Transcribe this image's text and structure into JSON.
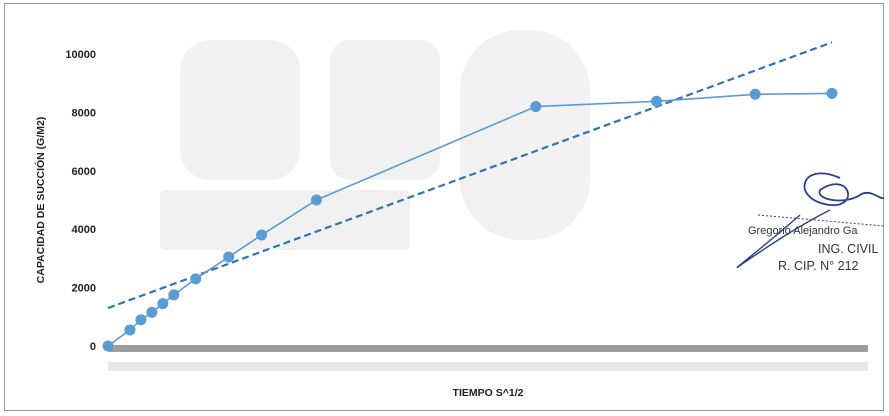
{
  "chart_data": {
    "type": "scatter",
    "title": "",
    "xlabel": "TIEMPO S^1/2",
    "ylabel": "CAPACIDAD DE SUCCIÓN (G/M2)",
    "ylim": [
      0,
      11000
    ],
    "yticks": [
      0,
      2000,
      4000,
      6000,
      8000,
      10000
    ],
    "grid": false,
    "legend": "none",
    "xlim": [
      0,
      33
    ],
    "series": [
      {
        "style": "line-marker",
        "color": "#5b9bd5",
        "x": [
          0,
          1,
          1.5,
          2,
          2.5,
          3,
          4,
          5.5,
          7,
          9.5,
          19.5,
          25,
          29.5,
          33
        ],
        "y": [
          0,
          550,
          900,
          1150,
          1450,
          1750,
          2300,
          3050,
          3800,
          5000,
          8200,
          8380,
          8620,
          8650
        ]
      },
      {
        "style": "dashed-trendline",
        "color": "#2e75b6",
        "x": [
          0,
          33
        ],
        "y": [
          1300,
          10400
        ]
      }
    ]
  },
  "signature": {
    "name": "Gregorio Alejandro Ga",
    "title": "ING. CIVIL",
    "registry": "R. CIP. N° 212"
  }
}
